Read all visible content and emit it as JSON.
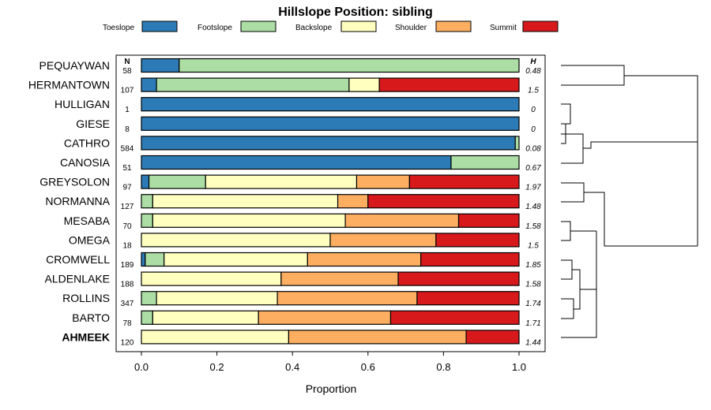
{
  "chart_data": {
    "type": "bar",
    "stacked": true,
    "orientation": "horizontal",
    "title": "Hillslope Position: sibling",
    "xlabel": "Proportion",
    "ylabel": "",
    "xlim": [
      0,
      1
    ],
    "xticks": [
      "0.0",
      "0.2",
      "0.4",
      "0.6",
      "0.8",
      "1.0"
    ],
    "n_header": "N",
    "h_header": "H",
    "legend_position": "top",
    "series": [
      {
        "name": "Toeslope",
        "color": "#2c7bb6"
      },
      {
        "name": "Footslope",
        "color": "#abdda4"
      },
      {
        "name": "Backslope",
        "color": "#ffffbf"
      },
      {
        "name": "Shoulder",
        "color": "#fdae61"
      },
      {
        "name": "Summit",
        "color": "#d7191c"
      }
    ],
    "rows": [
      {
        "label": "PEQUAYWAN",
        "n": "58",
        "h": "0.48",
        "values": [
          0.1,
          0.9,
          0,
          0,
          0
        ]
      },
      {
        "label": "HERMANTOWN",
        "n": "107",
        "h": "1.5",
        "values": [
          0.04,
          0.51,
          0.08,
          0,
          0.37
        ]
      },
      {
        "label": "HULLIGAN",
        "n": "1",
        "h": "0",
        "values": [
          1.0,
          0,
          0,
          0,
          0
        ]
      },
      {
        "label": "GIESE",
        "n": "8",
        "h": "0",
        "values": [
          1.0,
          0,
          0,
          0,
          0
        ]
      },
      {
        "label": "CATHRO",
        "n": "584",
        "h": "0.08",
        "values": [
          0.99,
          0.01,
          0,
          0,
          0
        ]
      },
      {
        "label": "CANOSIA",
        "n": "51",
        "h": "0.67",
        "values": [
          0.82,
          0.18,
          0,
          0,
          0
        ]
      },
      {
        "label": "GREYSOLON",
        "n": "97",
        "h": "1.97",
        "values": [
          0.02,
          0.15,
          0.4,
          0.14,
          0.29
        ]
      },
      {
        "label": "NORMANNA",
        "n": "127",
        "h": "1.48",
        "values": [
          0,
          0.03,
          0.49,
          0.08,
          0.4
        ]
      },
      {
        "label": "MESABA",
        "n": "70",
        "h": "1.58",
        "values": [
          0,
          0.03,
          0.51,
          0.3,
          0.16
        ]
      },
      {
        "label": "OMEGA",
        "n": "18",
        "h": "1.5",
        "values": [
          0,
          0,
          0.5,
          0.28,
          0.22
        ]
      },
      {
        "label": "CROMWELL",
        "n": "189",
        "h": "1.85",
        "values": [
          0.01,
          0.05,
          0.38,
          0.3,
          0.26
        ]
      },
      {
        "label": "ALDENLAKE",
        "n": "188",
        "h": "1.58",
        "values": [
          0,
          0,
          0.37,
          0.31,
          0.32
        ]
      },
      {
        "label": "ROLLINS",
        "n": "347",
        "h": "1.74",
        "values": [
          0,
          0.04,
          0.32,
          0.37,
          0.27
        ]
      },
      {
        "label": "BARTO",
        "n": "78",
        "h": "1.71",
        "values": [
          0,
          0.03,
          0.28,
          0.35,
          0.34
        ]
      },
      {
        "label": "AHMEEK",
        "n": "120",
        "h": "1.44",
        "values": [
          0,
          0,
          0.39,
          0.47,
          0.14
        ],
        "highlight": true
      }
    ]
  }
}
